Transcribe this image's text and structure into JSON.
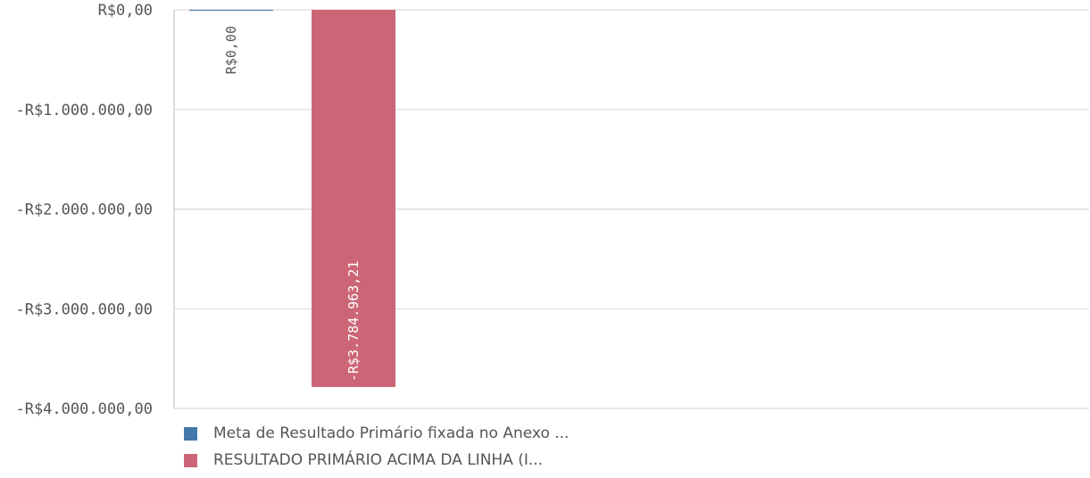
{
  "chart_data": {
    "type": "bar",
    "orientation": "vertical",
    "categories": [
      ""
    ],
    "series": [
      {
        "name": "Meta de Resultado Primário fixada no Anexo ...",
        "values": [
          0
        ],
        "value_labels": [
          "R$0,00"
        ],
        "color": "#4477aa"
      },
      {
        "name": "RESULTADO PRIMÁRIO ACIMA DA LINHA (I...",
        "values": [
          -3784963.21
        ],
        "value_labels": [
          "-R$3.784.963,21"
        ],
        "color": "#cc6677"
      }
    ],
    "ylim": [
      -4000000,
      0
    ],
    "yticks": [
      0,
      -1000000,
      -2000000,
      -3000000,
      -4000000
    ],
    "ytick_labels": [
      "R$0,00",
      "-R$1.000.000,00",
      "-R$2.000.000,00",
      "-R$3.000.000,00",
      "-R$4.000.000,00"
    ],
    "grid": true,
    "legend_position": "bottom-left",
    "title": "",
    "xlabel": "",
    "ylabel": ""
  }
}
